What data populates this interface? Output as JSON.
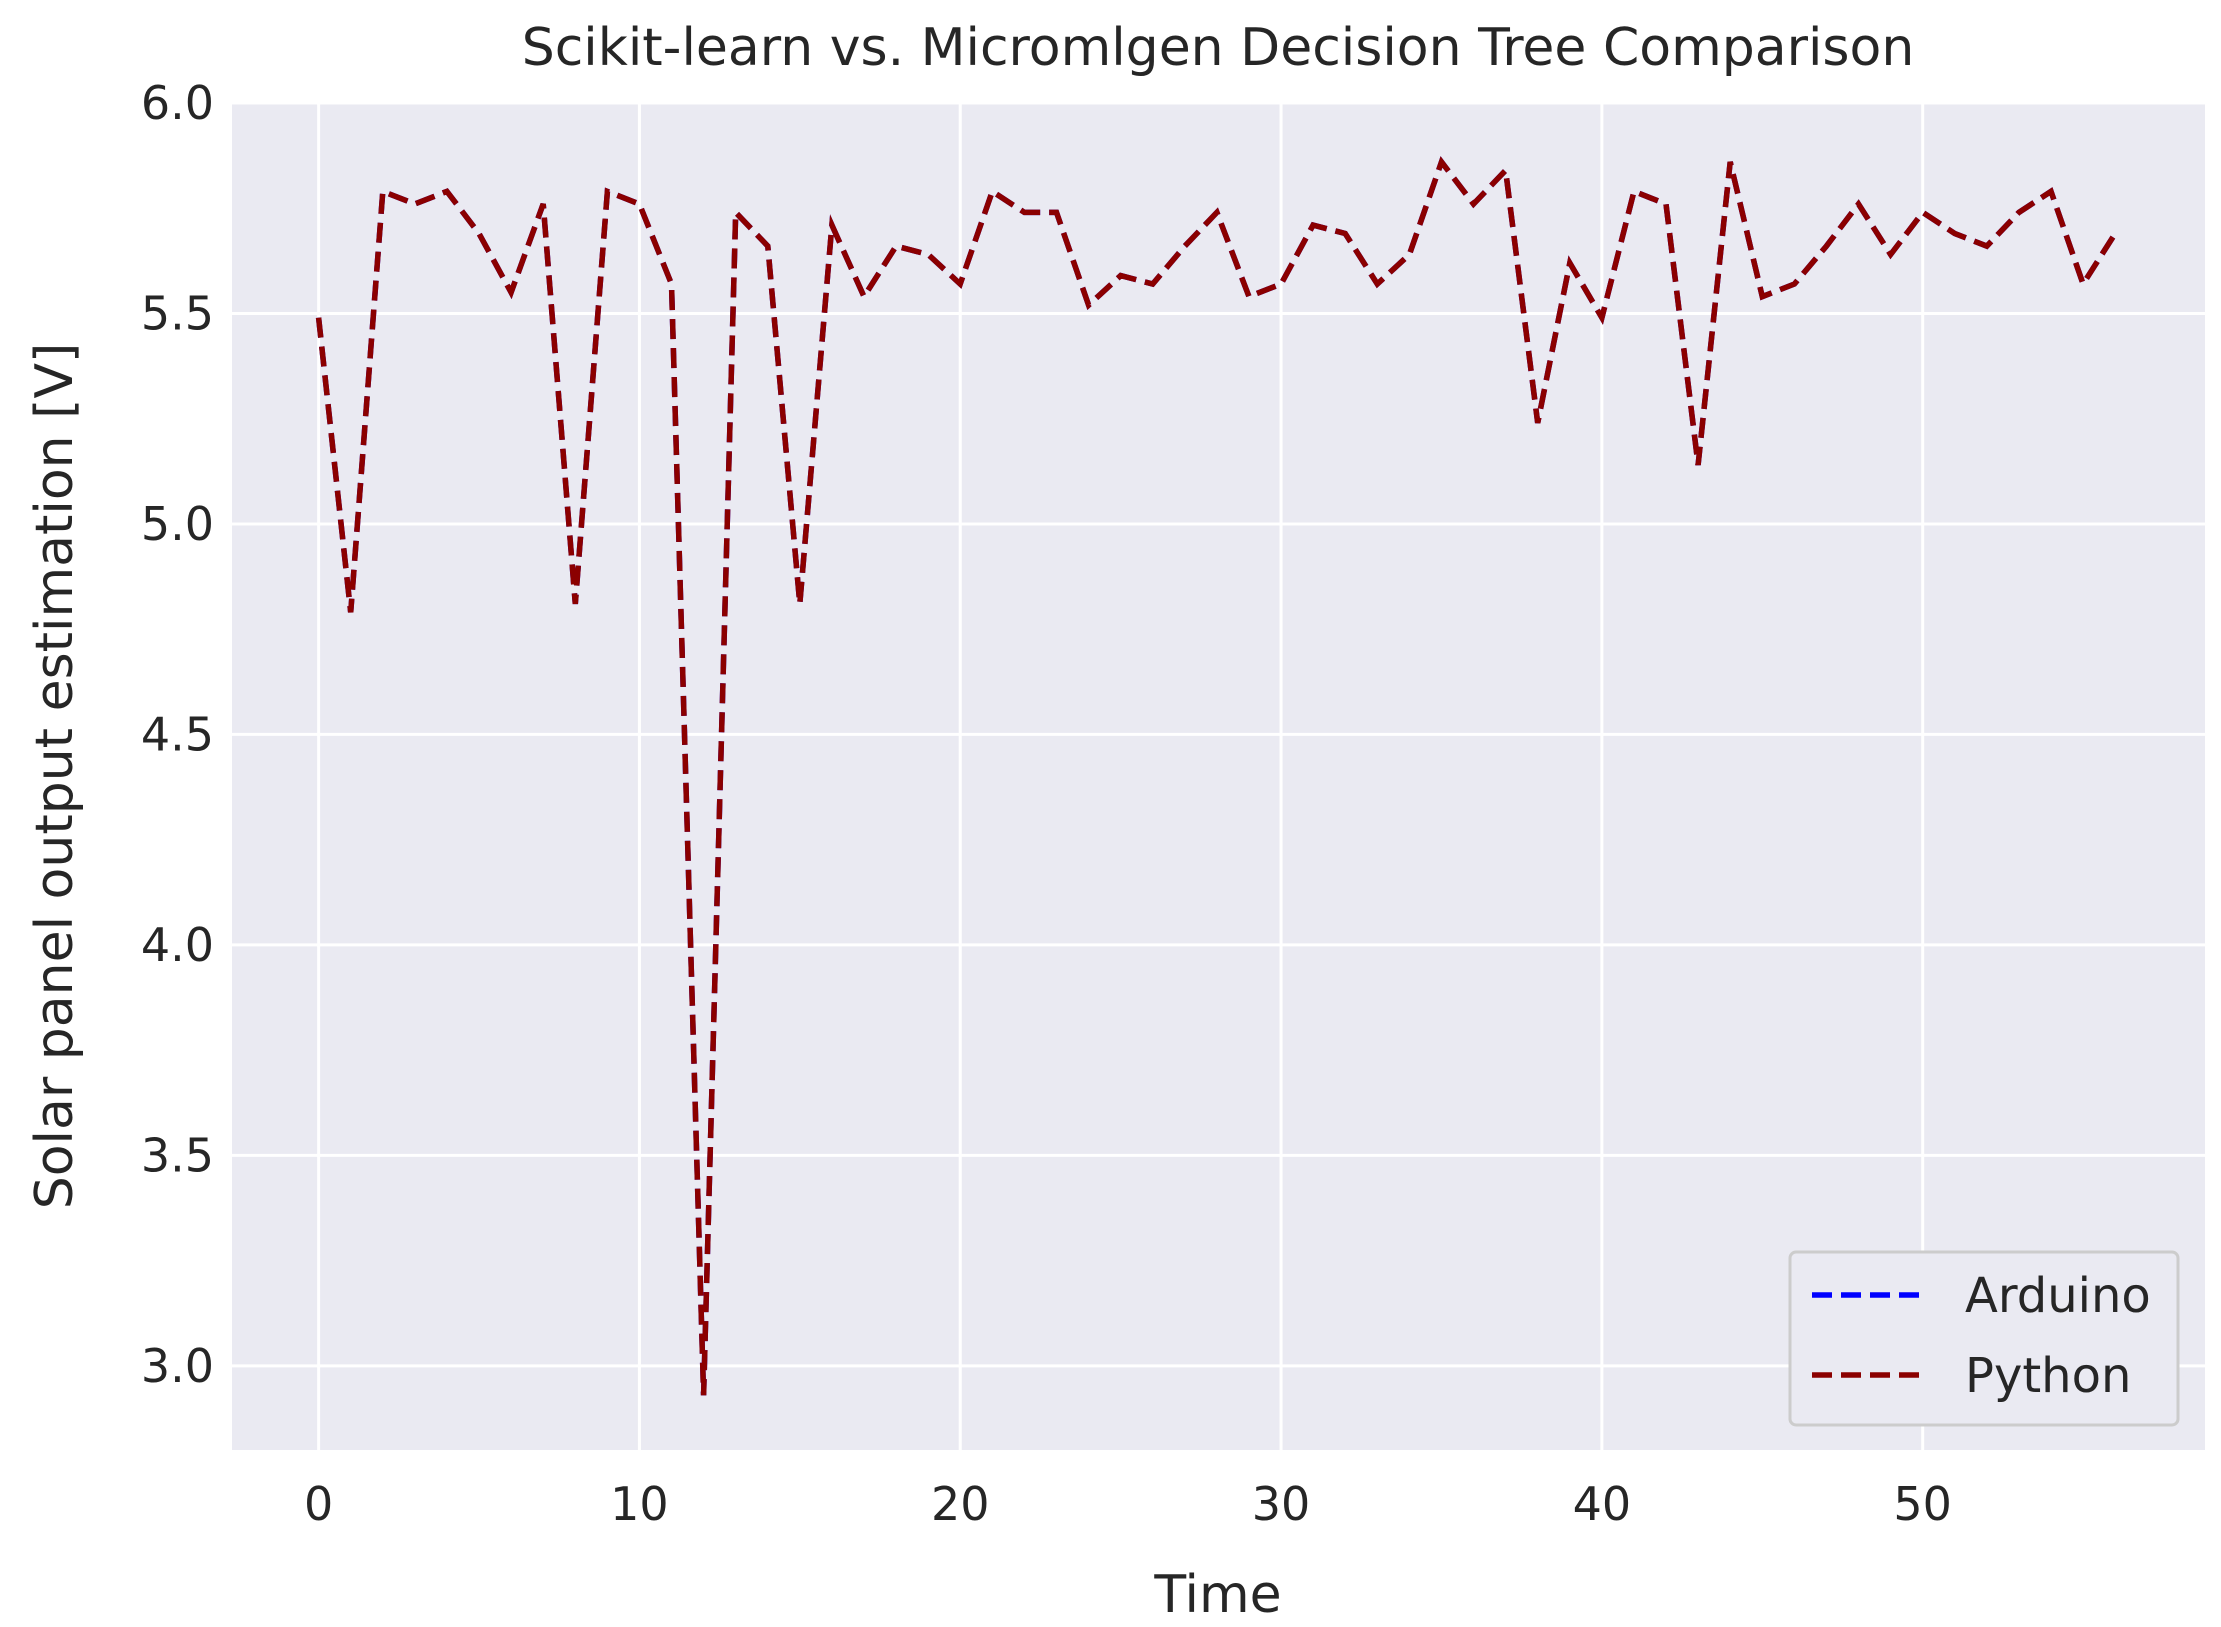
{
  "chart_data": {
    "type": "line",
    "title": "Scikit-learn vs. Micromlgen Decision Tree Comparison",
    "xlabel": "Time",
    "ylabel": "Solar panel output estimation [V]",
    "xlim": [
      -2.7,
      58.8
    ],
    "ylim": [
      2.8,
      6.0
    ],
    "xticks": [
      0,
      10,
      20,
      30,
      40,
      50
    ],
    "yticks": [
      3.0,
      3.5,
      4.0,
      4.5,
      5.0,
      5.5,
      6.0
    ],
    "ytick_labels": [
      "3.0",
      "3.5",
      "4.0",
      "4.5",
      "5.0",
      "5.5",
      "6.0"
    ],
    "grid": true,
    "legend_position": "lower-right",
    "x": [
      0,
      1,
      2,
      3,
      4,
      5,
      6,
      7,
      8,
      9,
      10,
      11,
      12,
      13,
      14,
      15,
      16,
      17,
      18,
      19,
      20,
      21,
      22,
      23,
      24,
      25,
      26,
      27,
      28,
      29,
      30,
      31,
      32,
      33,
      34,
      35,
      36,
      37,
      38,
      39,
      40,
      41,
      42,
      43,
      44,
      45,
      46,
      47,
      48,
      49,
      50,
      51,
      52,
      53,
      54,
      55,
      56
    ],
    "series": [
      {
        "name": "Arduino",
        "color": "#0000ff",
        "style": "dashed",
        "values": [
          5.49,
          4.79,
          5.79,
          5.76,
          5.79,
          5.69,
          5.55,
          5.76,
          4.81,
          5.79,
          5.76,
          5.57,
          2.93,
          5.74,
          5.66,
          4.81,
          5.71,
          5.54,
          5.66,
          5.64,
          5.57,
          5.79,
          5.74,
          5.74,
          5.52,
          5.59,
          5.57,
          5.66,
          5.74,
          5.54,
          5.57,
          5.71,
          5.69,
          5.57,
          5.64,
          5.86,
          5.76,
          5.84,
          5.24,
          5.62,
          5.49,
          5.79,
          5.76,
          5.14,
          5.86,
          5.54,
          5.57,
          5.66,
          5.76,
          5.64,
          5.74,
          5.69,
          5.66,
          5.74,
          5.79,
          5.57,
          5.69
        ]
      },
      {
        "name": "Python",
        "color": "#8b0000",
        "style": "dashed",
        "values": [
          5.49,
          4.79,
          5.79,
          5.76,
          5.79,
          5.69,
          5.55,
          5.76,
          4.81,
          5.79,
          5.76,
          5.57,
          2.93,
          5.74,
          5.66,
          4.81,
          5.71,
          5.54,
          5.66,
          5.64,
          5.57,
          5.79,
          5.74,
          5.74,
          5.52,
          5.59,
          5.57,
          5.66,
          5.74,
          5.54,
          5.57,
          5.71,
          5.69,
          5.57,
          5.64,
          5.86,
          5.76,
          5.84,
          5.24,
          5.62,
          5.49,
          5.79,
          5.76,
          5.14,
          5.86,
          5.54,
          5.57,
          5.66,
          5.76,
          5.64,
          5.74,
          5.69,
          5.66,
          5.74,
          5.79,
          5.57,
          5.69
        ]
      }
    ]
  },
  "style": {
    "plot_background": "#eaeaf2",
    "grid_color": "#ffffff",
    "text_color": "#262626",
    "legend_background": "#eaeaf2",
    "legend_border": "#cccccc"
  }
}
